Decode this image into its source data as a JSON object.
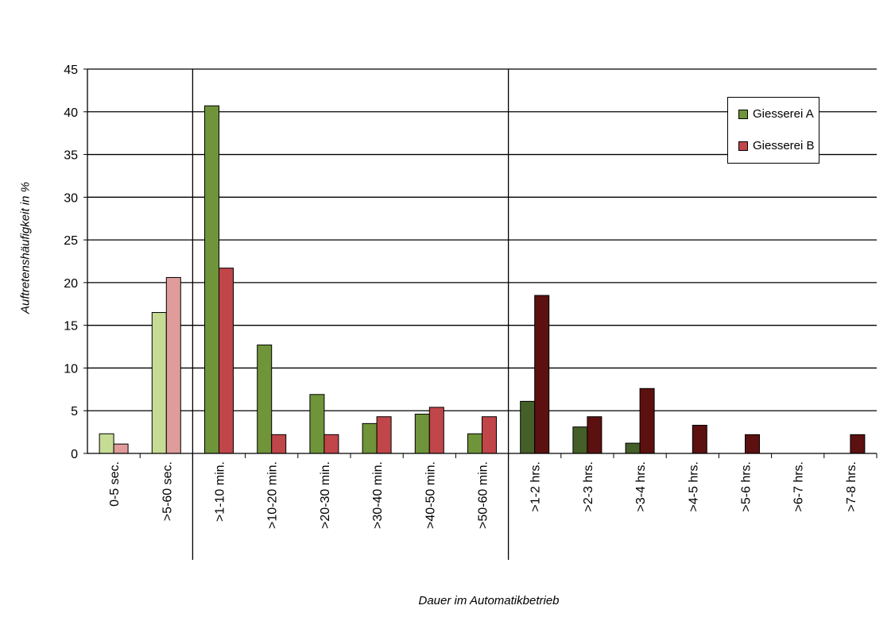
{
  "chart_data": {
    "type": "bar",
    "title": "",
    "xlabel": "Dauer im Automatikbetrieb",
    "ylabel": "Auftretenshäufigkeit in %",
    "ylim": [
      0,
      45
    ],
    "yticks": [
      0,
      5,
      10,
      15,
      20,
      25,
      30,
      35,
      40,
      45
    ],
    "grid": true,
    "legend_position": "top-right",
    "categories": [
      "0-5 sec.",
      ">5-60 sec.",
      ">1-10 min.",
      ">10-20 min.",
      ">20-30 min.",
      ">30-40 min.",
      ">40-50 min.",
      ">50-60 min.",
      ">1-2 hrs.",
      ">2-3 hrs.",
      ">3-4 hrs.",
      ">4-5 hrs.",
      ">5-6 hrs.",
      ">6-7 hrs.",
      ">7-8 hrs."
    ],
    "groups": [
      {
        "categories": [
          0,
          1
        ],
        "colors": {
          "Giesserei A": "#c6dc95",
          "Giesserei B": "#df9c9a"
        }
      },
      {
        "categories": [
          2,
          3,
          4,
          5,
          6,
          7
        ],
        "colors": {
          "Giesserei A": "#6f9439",
          "Giesserei B": "#c0464a"
        }
      },
      {
        "categories": [
          8,
          9,
          10,
          11,
          12,
          13,
          14
        ],
        "colors": {
          "Giesserei A": "#445f28",
          "Giesserei B": "#5c1010"
        }
      }
    ],
    "series": [
      {
        "name": "Giesserei A",
        "legend_color": "#6f9439",
        "values": [
          2.3,
          16.5,
          40.7,
          12.7,
          6.9,
          3.5,
          4.6,
          2.3,
          6.1,
          3.1,
          1.2,
          0,
          0,
          0,
          0
        ]
      },
      {
        "name": "Giesserei B",
        "legend_color": "#c0464a",
        "values": [
          1.1,
          20.6,
          21.7,
          2.2,
          2.2,
          4.3,
          5.4,
          4.3,
          18.5,
          4.3,
          7.6,
          3.3,
          2.2,
          0,
          2.2
        ]
      }
    ]
  }
}
